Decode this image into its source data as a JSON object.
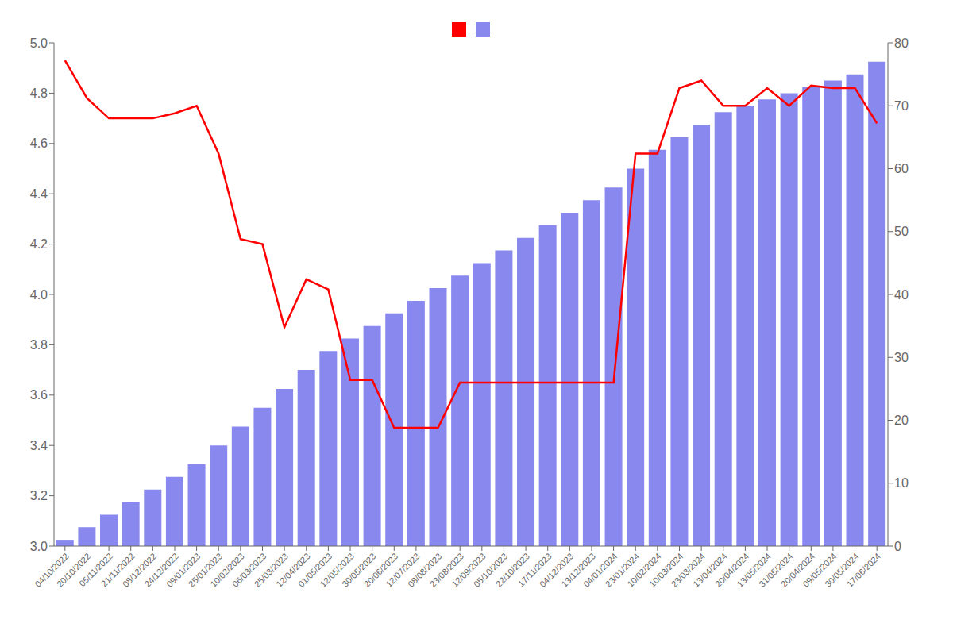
{
  "chart_data": {
    "type": "bar",
    "categories": [
      "04/10/2022",
      "20/10/2022",
      "05/11/2022",
      "21/11/2022",
      "08/12/2022",
      "24/12/2022",
      "09/01/2023",
      "25/01/2023",
      "10/02/2023",
      "06/03/2023",
      "25/03/2023",
      "12/04/2023",
      "01/05/2023",
      "12/05/2023",
      "30/05/2023",
      "20/06/2023",
      "12/07/2023",
      "08/08/2023",
      "23/08/2023",
      "12/09/2023",
      "05/10/2023",
      "22/10/2023",
      "17/11/2023",
      "04/12/2023",
      "13/12/2023",
      "04/01/2024",
      "23/01/2024",
      "10/02/2024",
      "10/03/2024",
      "23/03/2024",
      "13/04/2024",
      "20/04/2024",
      "13/05/2024",
      "31/05/2024",
      "20/04/2024",
      "09/05/2024",
      "30/05/2024",
      "17/06/2024"
    ],
    "series": [
      {
        "type": "line",
        "color": "#ff0000",
        "values": [
          4.93,
          4.78,
          4.7,
          4.7,
          4.7,
          4.72,
          4.75,
          4.56,
          4.22,
          4.2,
          3.87,
          4.06,
          4.02,
          3.66,
          3.66,
          3.47,
          3.47,
          3.47,
          3.65,
          3.65,
          3.65,
          3.65,
          3.65,
          3.65,
          3.65,
          3.65,
          4.56,
          4.56,
          4.82,
          4.85,
          4.75,
          4.75,
          4.82,
          4.75,
          4.83,
          4.82,
          4.82,
          4.68
        ]
      },
      {
        "type": "bar",
        "axis": "y2",
        "color": "#8888ee",
        "values": [
          1,
          3,
          5,
          7,
          9,
          11,
          13,
          16,
          19,
          22,
          25,
          28,
          31,
          33,
          35,
          37,
          39,
          41,
          43,
          45,
          47,
          49,
          51,
          53,
          55,
          57,
          60,
          63,
          65,
          67,
          69,
          70,
          71,
          72,
          73,
          74,
          75,
          77
        ]
      }
    ],
    "ylim": [
      3.0,
      5.0
    ],
    "yticks": [
      {
        "value": 3.0,
        "label": "3.0"
      },
      3.2,
      3.4,
      3.6,
      3.8,
      {
        "value": 4.0,
        "label": "4.0"
      },
      4.2,
      4.4,
      4.6,
      4.8,
      {
        "value": 5.0,
        "label": "5.0"
      }
    ],
    "y2lim": [
      0,
      80
    ],
    "y2ticks": [
      0,
      10,
      20,
      30,
      40,
      50,
      60,
      70,
      80
    ],
    "grid": false,
    "legend": "top"
  }
}
